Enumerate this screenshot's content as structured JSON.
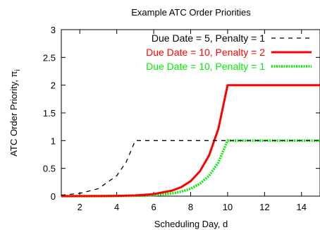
{
  "chart_data": {
    "type": "line",
    "title": "Example ATC Order Priorities",
    "xlabel": "Scheduling Day, d",
    "ylabel": "ATC Order Priority, π",
    "ylabel_subscript": "i",
    "xlim": [
      1,
      15
    ],
    "ylim": [
      0,
      3
    ],
    "xticks": [
      2,
      4,
      6,
      8,
      10,
      12,
      14
    ],
    "yticks": [
      0,
      0.5,
      1,
      1.5,
      2,
      2.5,
      3
    ],
    "ytick_labels": [
      "0",
      "0.5",
      "1",
      "1.5",
      "2",
      "2.5",
      "3"
    ],
    "grid": false,
    "legend_position": "top-right",
    "series": [
      {
        "name": "Due Date = 5, Penalty = 1",
        "color": "#000000",
        "style": "dashed",
        "x": [
          1,
          2,
          3,
          4,
          4.5,
          5,
          5.5,
          6,
          8,
          10,
          12,
          15
        ],
        "y": [
          0.018,
          0.05,
          0.135,
          0.368,
          0.607,
          1.0,
          1.0,
          1.0,
          1.0,
          1.0,
          1.0,
          1.0
        ]
      },
      {
        "name": "Due Date = 10, Penalty = 2",
        "color": "#ff0000",
        "style": "solid",
        "x": [
          1,
          2,
          3,
          4,
          5,
          6,
          7,
          7.5,
          8,
          8.5,
          9,
          9.5,
          10,
          10.5,
          12,
          15
        ],
        "y": [
          0.0002,
          0.0007,
          0.0018,
          0.005,
          0.013,
          0.037,
          0.1,
          0.164,
          0.271,
          0.446,
          0.736,
          1.213,
          2.0,
          2.0,
          2.0,
          2.0
        ]
      },
      {
        "name": "Due Date = 10, Penalty = 1",
        "color": "#00ee00",
        "style": "dotted",
        "x": [
          1,
          2,
          3,
          4,
          5,
          6,
          7,
          7.5,
          8,
          8.5,
          9,
          9.5,
          10,
          10.5,
          12,
          15
        ],
        "y": [
          0.0001,
          0.0003,
          0.0009,
          0.0025,
          0.0067,
          0.018,
          0.05,
          0.082,
          0.135,
          0.223,
          0.368,
          0.607,
          1.0,
          1.0,
          1.0,
          1.0
        ]
      }
    ]
  }
}
